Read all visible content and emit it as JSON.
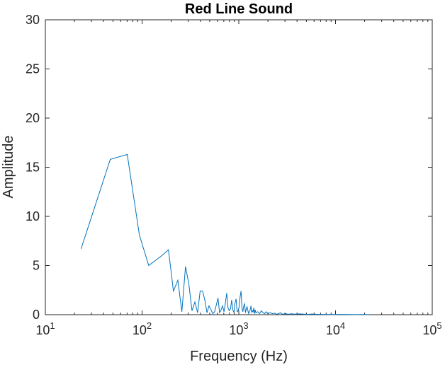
{
  "chart_data": {
    "type": "line",
    "title": "Red Line Sound",
    "xlabel": "Frequency (Hz)",
    "ylabel": "Amplitude",
    "xscale": "log",
    "xlim": [
      10,
      100000
    ],
    "ylim": [
      0,
      30
    ],
    "xticks": [
      {
        "base": "10",
        "exp": "1"
      },
      {
        "base": "10",
        "exp": "2"
      },
      {
        "base": "10",
        "exp": "3"
      },
      {
        "base": "10",
        "exp": "4"
      },
      {
        "base": "10",
        "exp": "5"
      }
    ],
    "yticks": [
      "0",
      "5",
      "10",
      "15",
      "20",
      "25",
      "30"
    ],
    "grid": false,
    "line_color": "#0072BD",
    "series": [
      {
        "x": [
          23.4,
          46.9,
          70.3,
          93.8,
          117.2,
          164.1,
          187.5,
          210.9,
          234.4,
          257.8,
          281.3,
          304.7,
          328.1,
          351.6,
          375.0,
          398.4,
          421.9,
          445.3,
          468.8,
          492.2,
          515.6,
          539.1,
          562.5,
          585.9,
          609.4,
          632.8,
          656.3,
          679.7,
          703.1,
          726.6,
          750.0,
          773.4,
          796.9,
          820.3,
          843.8,
          867.2,
          890.6,
          914.1,
          937.5,
          960.9,
          984.4,
          1007.8,
          1031.3,
          1054.7,
          1078.1,
          1101.6,
          1125.0,
          1148.4,
          1171.9,
          1195.3,
          1218.8,
          1242.2,
          1265.6,
          1289.1,
          1312.5,
          1335.9,
          1359.4,
          1382.8,
          1406.3,
          1429.7,
          1453.1,
          1476.6,
          1500.0,
          1570.3,
          1640.6,
          1710.9,
          1781.3,
          1851.6,
          1921.9,
          1992.2,
          2109.4,
          2226.6,
          2343.8,
          2460.9,
          2578.1,
          2695.3,
          2812.5,
          3046.9,
          3281.3,
          3515.6,
          3750.0,
          4218.8,
          4687.5,
          5156.3,
          5625.0,
          6562.5,
          7500.0,
          9375.0,
          11250.0,
          14062.5,
          16875.0,
          19687.5,
          22500.0
        ],
        "y": [
          6.7,
          15.8,
          16.3,
          8.1,
          5.0,
          6.1,
          6.6,
          2.4,
          3.5,
          0.3,
          4.9,
          3.1,
          0.4,
          1.3,
          0.2,
          2.4,
          2.4,
          1.5,
          0.2,
          0.9,
          0.5,
          0.1,
          0.3,
          1.0,
          1.7,
          0.2,
          0.5,
          0.9,
          0.3,
          1.2,
          2.2,
          0.7,
          0.4,
          0.6,
          1.5,
          0.5,
          0.2,
          1.2,
          1.6,
          0.3,
          0.4,
          0.8,
          1.8,
          2.4,
          0.7,
          0.3,
          0.9,
          1.1,
          0.2,
          0.6,
          0.8,
          0.4,
          0.1,
          0.3,
          0.5,
          0.9,
          0.2,
          0.4,
          0.3,
          0.7,
          0.1,
          0.5,
          0.2,
          0.3,
          0.1,
          0.4,
          0.2,
          0.1,
          0.3,
          0.1,
          0.2,
          0.1,
          0.15,
          0.05,
          0.1,
          0.2,
          0.05,
          0.1,
          0.05,
          0.1,
          0.05,
          0.08,
          0.05,
          0.03,
          0.06,
          0.04,
          0.03,
          0.02,
          0.03,
          0.02,
          0.01,
          0.02,
          0.01
        ]
      }
    ]
  }
}
